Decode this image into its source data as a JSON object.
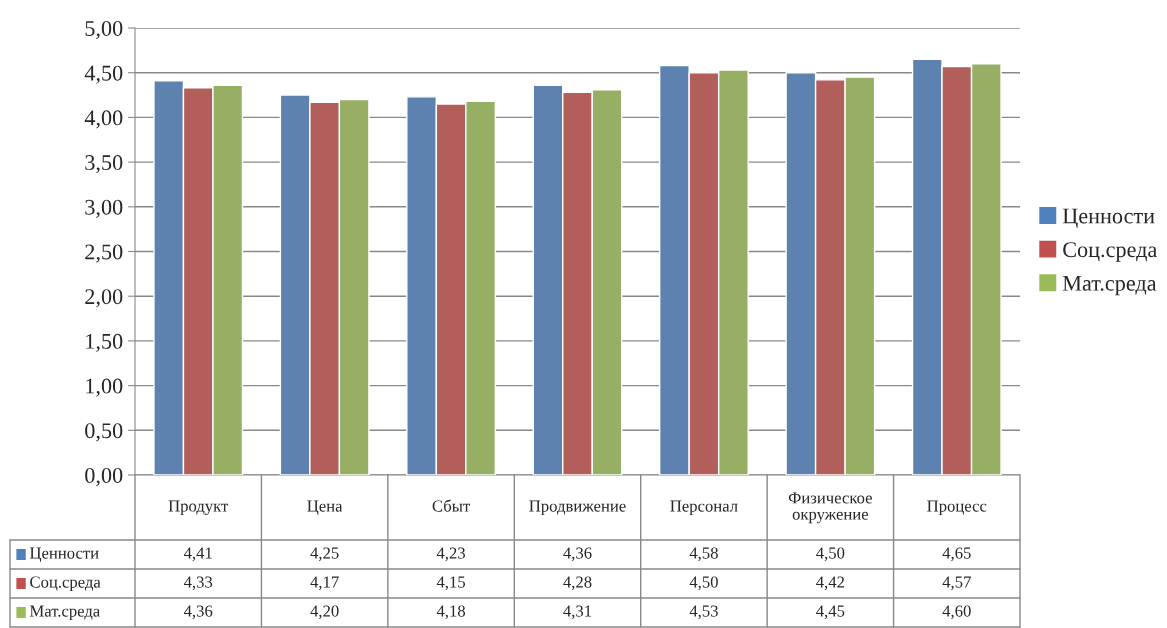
{
  "chart_data": {
    "type": "bar",
    "categories": [
      "Продукт",
      "Цена",
      "Сбыт",
      "Продвижение",
      "Персонал",
      "Физическое окружение",
      "Процесс"
    ],
    "series": [
      {
        "name": "Ценности",
        "color": "#4f81bd",
        "values": [
          4.41,
          4.25,
          4.23,
          4.36,
          4.58,
          4.5,
          4.65
        ],
        "value_labels": [
          "4,41",
          "4,25",
          "4,23",
          "4,36",
          "4,58",
          "4,50",
          "4,65"
        ]
      },
      {
        "name": "Соц.среда",
        "color": "#c0504d",
        "values": [
          4.33,
          4.17,
          4.15,
          4.28,
          4.5,
          4.42,
          4.57
        ],
        "value_labels": [
          "4,33",
          "4,17",
          "4,15",
          "4,28",
          "4,50",
          "4,42",
          "4,57"
        ]
      },
      {
        "name": "Мат.среда",
        "color": "#9bbb59",
        "values": [
          4.36,
          4.2,
          4.18,
          4.31,
          4.53,
          4.45,
          4.6
        ],
        "value_labels": [
          "4,36",
          "4,20",
          "4,18",
          "4,31",
          "4,53",
          "4,45",
          "4,60"
        ]
      }
    ],
    "ylim": [
      0,
      5
    ],
    "yticks": [
      {
        "value": 0,
        "label": "0,00"
      },
      {
        "value": 0.5,
        "label": "0,50"
      },
      {
        "value": 1,
        "label": "1,00"
      },
      {
        "value": 1.5,
        "label": "1,50"
      },
      {
        "value": 2,
        "label": "2,00"
      },
      {
        "value": 2.5,
        "label": "2,50"
      },
      {
        "value": 3,
        "label": "3,00"
      },
      {
        "value": 3.5,
        "label": "3,50"
      },
      {
        "value": 4,
        "label": "4,00"
      },
      {
        "value": 4.5,
        "label": "4,50"
      },
      {
        "value": 5,
        "label": "5,00"
      }
    ],
    "grid": "y",
    "legend": "right"
  }
}
